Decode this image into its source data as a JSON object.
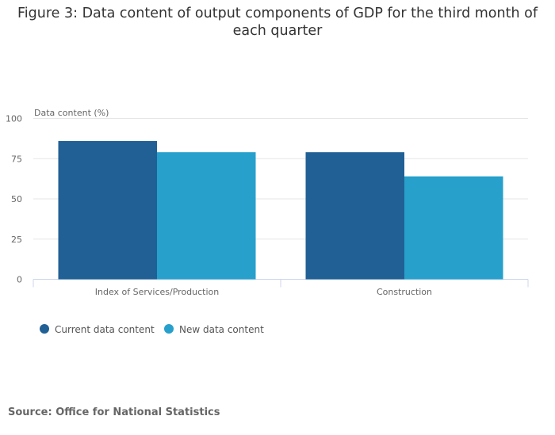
{
  "chart_data": {
    "type": "bar",
    "title": "Figure 3: Data content of output components of GDP for the third month of each quarter",
    "ylabel": "Data content (%)",
    "xlabel": "",
    "categories": [
      "Index of Services/Production",
      "Construction"
    ],
    "series": [
      {
        "name": "Current data content",
        "color": "#206095",
        "values": [
          86,
          79
        ]
      },
      {
        "name": "New data content",
        "color": "#27a0cc",
        "values": [
          79,
          64
        ]
      }
    ],
    "ylim": [
      0,
      100
    ],
    "yticks": [
      0,
      25,
      50,
      75,
      100
    ],
    "grid": true,
    "legend": "bottom-left",
    "source": "Source: Office for National Statistics"
  }
}
